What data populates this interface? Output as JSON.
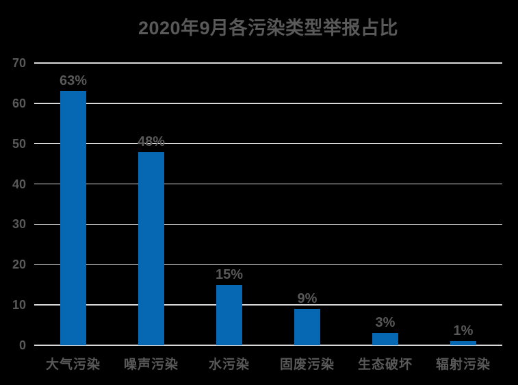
{
  "chart_data": {
    "type": "bar",
    "title": "2020年9月各污染类型举报占比",
    "categories": [
      "大气污染",
      "噪声污染",
      "水污染",
      "固废污染",
      "生态破坏",
      "辐射污染"
    ],
    "values": [
      63,
      48,
      15,
      9,
      3,
      1
    ],
    "data_labels": [
      "63%",
      "48%",
      "15%",
      "9%",
      "3%",
      "1%"
    ],
    "xlabel": "",
    "ylabel": "",
    "ylim": [
      0,
      70
    ],
    "yticks": [
      0,
      10,
      20,
      30,
      40,
      50,
      60,
      70
    ],
    "grid": true,
    "legend": "none",
    "colors": {
      "background": "#000000",
      "bar": "#0667B2",
      "text": "#595959",
      "gridline": "#D9D9D9"
    }
  }
}
